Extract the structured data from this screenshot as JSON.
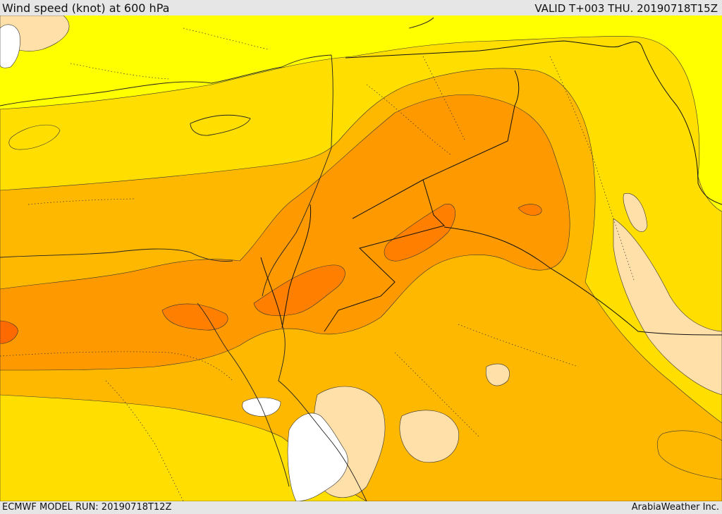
{
  "header": {
    "title": "Wind speed (knot) at 600 hPa",
    "valid": "VALID T+003 THU. 20190718T15Z"
  },
  "footer": {
    "model_run": "ECMWF MODEL RUN: 20190718T12Z",
    "credit": "ArabiaWeather Inc."
  },
  "colors": {
    "band_0": "#ffffff",
    "band_1": "#ffe0a8",
    "band_2": "#ffff00",
    "band_3": "#ffde00",
    "band_4": "#ffb800",
    "band_5": "#ff9900",
    "band_6": "#ff8000",
    "band_7": "#ff6a00",
    "outline": "#333333"
  }
}
